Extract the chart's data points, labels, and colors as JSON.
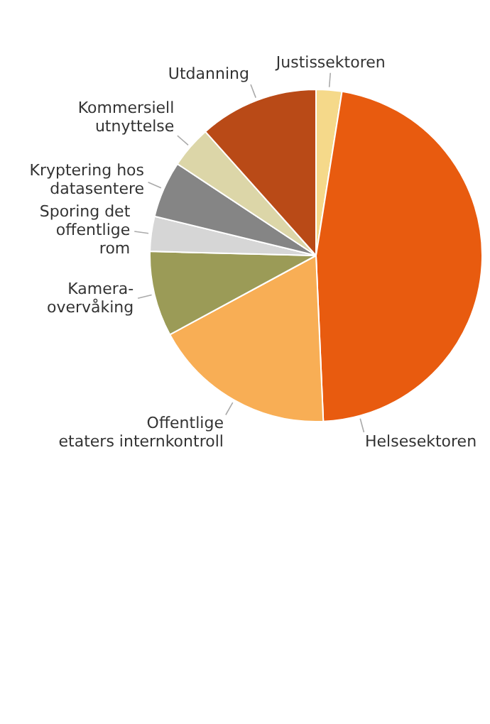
{
  "chart_data": {
    "type": "pie",
    "categories": [
      "Justissektoren",
      "Helsesektoren",
      "Offentlige\netaters internkontroll",
      "Kamera-\novervåking",
      "Sporing det\noffentlige\nrom",
      "Kryptering hos\ndatasentere",
      "Kommersiell\nutnyttelse",
      "Utdanning"
    ],
    "values": [
      2.5,
      46.8,
      17.8,
      8.3,
      3.4,
      5.5,
      4.1,
      11.6
    ],
    "colors": [
      "#f5d98a",
      "#e85b0f",
      "#f8ae55",
      "#9b9b57",
      "#d6d6d6",
      "#858585",
      "#dcd6a8",
      "#b94a17"
    ],
    "legend": false
  }
}
